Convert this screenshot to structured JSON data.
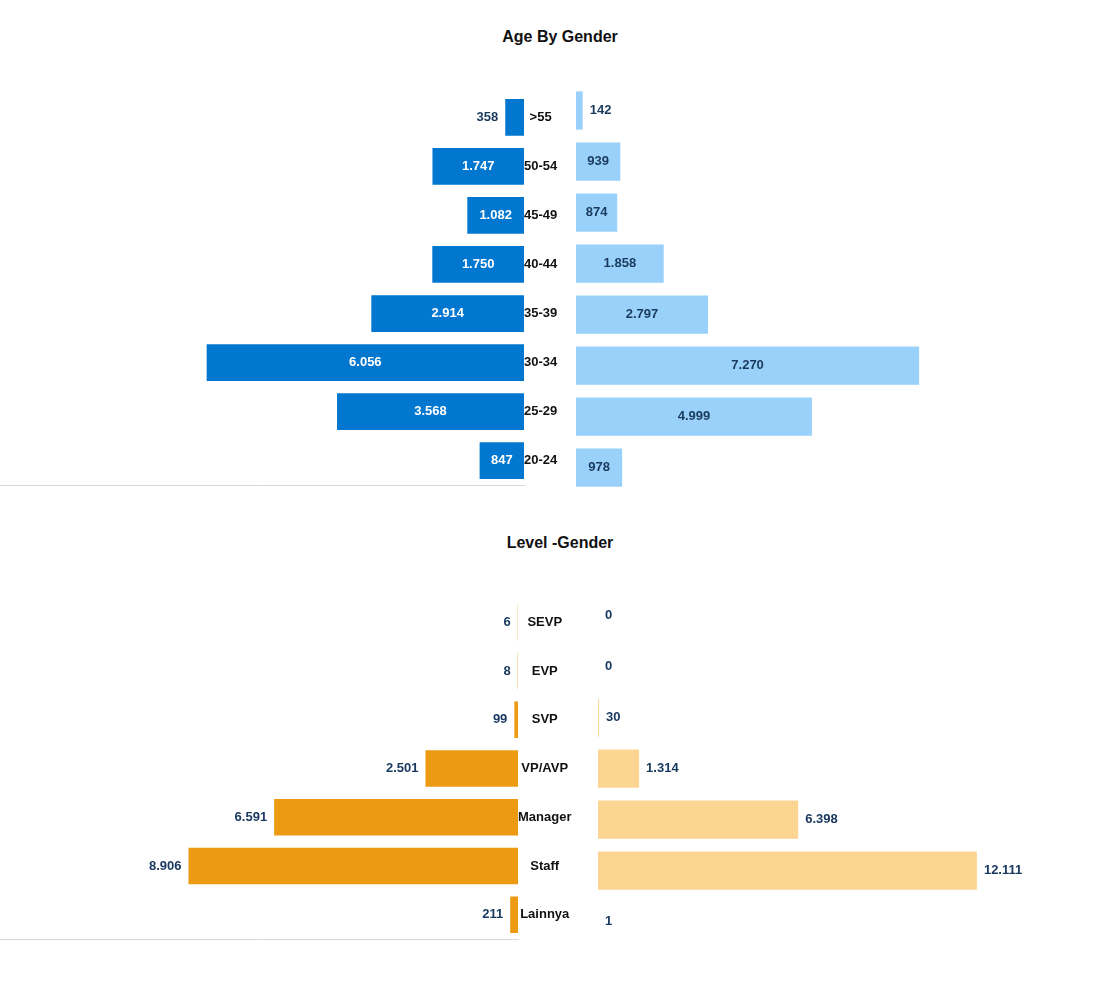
{
  "chart_data": [
    {
      "type": "bar",
      "orientation": "horizontal",
      "title": "Age By Gender",
      "categories": [
        ">55",
        "50-54",
        "45-49",
        "40-44",
        "35-39",
        "30-34",
        "25-29",
        "20-24"
      ],
      "series": [
        {
          "color": "#0277cf",
          "values": [
            358,
            1747,
            1082,
            1750,
            2914,
            6056,
            3568,
            847
          ],
          "value_labels": [
            "358",
            "1.747",
            "1.082",
            "1.750",
            "2.914",
            "6.056",
            "3.568",
            "847"
          ]
        },
        {
          "color": "#99d1fb",
          "values": [
            142,
            939,
            874,
            1858,
            2797,
            7270,
            4999,
            978
          ],
          "value_labels": [
            "142",
            "939",
            "874",
            "1.858",
            "2.797",
            "7.270",
            "4.999",
            "978"
          ]
        }
      ],
      "xlim": [
        0,
        10000
      ],
      "data_labels": true,
      "tick_labels": "y",
      "grid": false
    },
    {
      "type": "bar",
      "orientation": "horizontal",
      "title": "Level -Gender",
      "categories": [
        "SEVP",
        "EVP",
        "SVP",
        "VP/AVP",
        "Manager",
        "Staff",
        "Lainnya"
      ],
      "series": [
        {
          "color": "#ec9a12",
          "values": [
            6,
            8,
            99,
            2501,
            6591,
            8906,
            211
          ],
          "value_labels": [
            "6",
            "8",
            "99",
            "2.501",
            "6.591",
            "8.906",
            "211"
          ]
        },
        {
          "color": "#fdd593",
          "values": [
            0,
            0,
            30,
            1314,
            6398,
            12111,
            1
          ],
          "value_labels": [
            "0",
            "0",
            "30",
            "1.314",
            "6.398",
            "12.111",
            "1"
          ]
        }
      ],
      "xlim": [
        0,
        14000
      ],
      "data_labels": true,
      "tick_labels": "y",
      "grid": false
    }
  ]
}
